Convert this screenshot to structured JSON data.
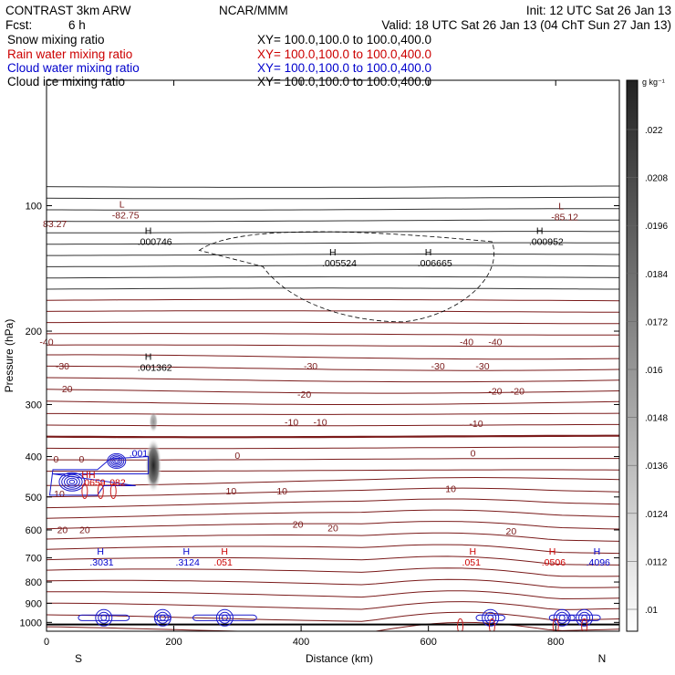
{
  "header": {
    "model": "CONTRAST   3km ARW",
    "org": "NCAR/MMM",
    "init": "Init: 12 UTC Sat 26 Jan 13",
    "fcst_label": "Fcst:",
    "fcst_value": "6 h",
    "valid": "Valid: 18 UTC Sat 26 Jan 13 (04 ChT Sun 27 Jan 13)"
  },
  "fields": [
    {
      "name": "Snow mixing ratio",
      "xy": "XY=  100.0,100.0  to  100.0,400.0",
      "color": "#000000"
    },
    {
      "name": "Rain water mixing ratio",
      "xy": "XY=  100.0,100.0  to  100.0,400.0",
      "color": "#cc0000"
    },
    {
      "name": "Cloud water mixing ratio",
      "xy": "XY=  100.0,100.0  to  100.0,400.0",
      "color": "#0000cc"
    },
    {
      "name": "Cloud ice mixing ratio",
      "xy": "XY=  100.0,100.0  to  100.0,400.0",
      "color": "#000000"
    }
  ],
  "colors": {
    "temperature": "#7a1a1a",
    "cloud_water": "#1a1acc",
    "rain": "#cc2020",
    "snow": "#000000"
  },
  "chart_data": {
    "type": "contour",
    "xlabel": "Distance (km)",
    "ylabel": "Pressure (hPa)",
    "xlim": [
      0,
      900
    ],
    "ylim": [
      1050,
      50
    ],
    "y_scale": "log",
    "x_ticks": [
      "0",
      "200",
      "400",
      "600",
      "800"
    ],
    "x_tick_values": [
      0,
      200,
      400,
      600,
      800
    ],
    "y_ticks": [
      "100",
      "200",
      "300",
      "400",
      "500",
      "600",
      "700",
      "800",
      "900",
      "1000"
    ],
    "y_tick_values": [
      100,
      200,
      300,
      400,
      500,
      600,
      700,
      800,
      900,
      1000
    ],
    "direction_labels": [
      "S",
      "N"
    ],
    "colorbar": {
      "unit": "g kg⁻¹",
      "labels": [
        ".022",
        ".0208",
        ".0196",
        ".0184",
        ".0172",
        ".016",
        ".0148",
        ".0136",
        ".0124",
        ".0112",
        ".01"
      ]
    },
    "temperature_labels": [
      {
        "text": "-40",
        "x": 0,
        "p": 212
      },
      {
        "text": "-40",
        "x": 660,
        "p": 212
      },
      {
        "text": "-40",
        "x": 705,
        "p": 212
      },
      {
        "text": "-30",
        "x": 25,
        "p": 242
      },
      {
        "text": "-30",
        "x": 415,
        "p": 242
      },
      {
        "text": "-30",
        "x": 615,
        "p": 242
      },
      {
        "text": "-30",
        "x": 685,
        "p": 242
      },
      {
        "text": "-20",
        "x": 30,
        "p": 275
      },
      {
        "text": "-20",
        "x": 405,
        "p": 283
      },
      {
        "text": "-20",
        "x": 705,
        "p": 278
      },
      {
        "text": "-20",
        "x": 740,
        "p": 278
      },
      {
        "text": "-10",
        "x": 385,
        "p": 330
      },
      {
        "text": "-10",
        "x": 430,
        "p": 330
      },
      {
        "text": "-10",
        "x": 675,
        "p": 333
      },
      {
        "text": "0",
        "x": 15,
        "p": 405
      },
      {
        "text": "0",
        "x": 55,
        "p": 405
      },
      {
        "text": "0",
        "x": 300,
        "p": 397
      },
      {
        "text": "0",
        "x": 670,
        "p": 392
      },
      {
        "text": "10",
        "x": 20,
        "p": 490
      },
      {
        "text": "10",
        "x": 290,
        "p": 483
      },
      {
        "text": "10",
        "x": 370,
        "p": 483
      },
      {
        "text": "10",
        "x": 635,
        "p": 477
      },
      {
        "text": "20",
        "x": 25,
        "p": 598
      },
      {
        "text": "20",
        "x": 60,
        "p": 598
      },
      {
        "text": "20",
        "x": 395,
        "p": 580
      },
      {
        "text": "20",
        "x": 450,
        "p": 592
      },
      {
        "text": "20",
        "x": 730,
        "p": 603
      }
    ],
    "extrema": [
      {
        "type": "L",
        "value": "-82.75",
        "x": 100,
        "p": 102,
        "color": "#7a1a1a"
      },
      {
        "type": "L",
        "value": "-85.12",
        "x": 790,
        "p": 103,
        "color": "#7a1a1a"
      },
      {
        "type": "",
        "value": "83.27",
        "x": 0,
        "p": 107,
        "color": "#7a1a1a"
      },
      {
        "type": "H",
        "value": ".000746",
        "x": 140,
        "p": 118,
        "color": "#000000"
      },
      {
        "type": "H",
        "value": ".005524",
        "x": 430,
        "p": 133,
        "color": "#000000"
      },
      {
        "type": "H",
        "value": ".006665",
        "x": 580,
        "p": 133,
        "color": "#000000"
      },
      {
        "type": "H",
        "value": ".000952",
        "x": 755,
        "p": 118,
        "color": "#000000"
      },
      {
        "type": "H",
        "value": ".001362",
        "x": 140,
        "p": 237,
        "color": "#000000"
      },
      {
        "type": "H",
        "value": ".3031",
        "x": 65,
        "p": 695,
        "color": "#0000cc"
      },
      {
        "type": "H",
        "value": ".3124",
        "x": 200,
        "p": 695,
        "color": "#0000cc"
      },
      {
        "type": "H",
        "value": ".051",
        "x": 260,
        "p": 695,
        "color": "#cc0000"
      },
      {
        "type": "H",
        "value": ".051",
        "x": 650,
        "p": 695,
        "color": "#cc0000"
      },
      {
        "type": "H",
        "value": ".0506",
        "x": 775,
        "p": 695,
        "color": "#cc0000"
      },
      {
        "type": "H",
        "value": ".4096",
        "x": 845,
        "p": 695,
        "color": "#0000cc"
      }
    ],
    "upper_labels": [
      {
        "text": ".001",
        "x": 130,
        "p": 400,
        "color": "#0000cc"
      },
      {
        "text": "HH",
        "x": 55,
        "p": 450,
        "color": "#cc0000"
      },
      {
        "text": ".0659",
        "x": 55,
        "p": 470,
        "color": "#cc0000"
      },
      {
        "text": ".082",
        "x": 95,
        "p": 470,
        "color": "#cc0000"
      }
    ]
  }
}
